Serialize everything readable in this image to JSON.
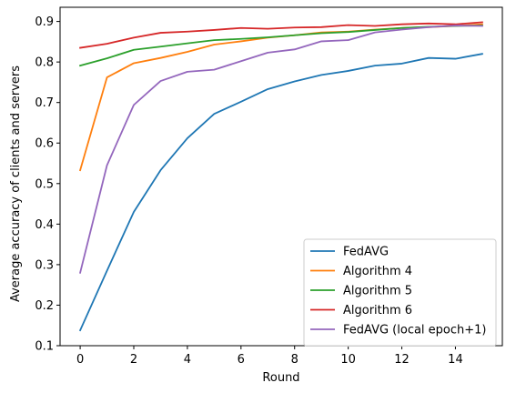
{
  "chart_data": {
    "type": "line",
    "xlabel": "Round",
    "ylabel": "Average accuracy of clients and servers",
    "xlim": [
      -0.75,
      15.75
    ],
    "ylim": [
      0.1,
      0.935
    ],
    "xticks": [
      0,
      2,
      4,
      6,
      8,
      10,
      12,
      14
    ],
    "yticks": [
      0.1,
      0.2,
      0.3,
      0.4,
      0.5,
      0.6,
      0.7,
      0.8,
      0.9
    ],
    "grid": false,
    "legend_position": "lower-right",
    "x": [
      0,
      1,
      2,
      3,
      4,
      5,
      6,
      7,
      8,
      9,
      10,
      11,
      12,
      13,
      14,
      15
    ],
    "series": [
      {
        "name": "FedAVG",
        "color": "#1f77b4",
        "values": [
          0.138,
          0.285,
          0.43,
          0.533,
          0.612,
          0.672,
          0.702,
          0.733,
          0.752,
          0.768,
          0.778,
          0.791,
          0.796,
          0.81,
          0.808,
          0.82
        ]
      },
      {
        "name": "Algorithm 4",
        "color": "#ff7f0e",
        "values": [
          0.533,
          0.762,
          0.797,
          0.81,
          0.825,
          0.843,
          0.851,
          0.86,
          0.866,
          0.873,
          0.875,
          0.88,
          0.884,
          0.886,
          0.889,
          0.893
        ]
      },
      {
        "name": "Algorithm 5",
        "color": "#2ca02c",
        "values": [
          0.791,
          0.809,
          0.83,
          0.838,
          0.846,
          0.854,
          0.857,
          0.861,
          0.866,
          0.871,
          0.874,
          0.879,
          0.884,
          0.887,
          0.889,
          0.89
        ]
      },
      {
        "name": "Algorithm 6",
        "color": "#d62728",
        "values": [
          0.835,
          0.845,
          0.86,
          0.872,
          0.875,
          0.879,
          0.884,
          0.882,
          0.885,
          0.886,
          0.891,
          0.889,
          0.893,
          0.895,
          0.893,
          0.898
        ]
      },
      {
        "name": "FedAVG (local epoch+1)",
        "color": "#9467bd",
        "values": [
          0.28,
          0.545,
          0.694,
          0.753,
          0.776,
          0.781,
          0.802,
          0.823,
          0.831,
          0.851,
          0.854,
          0.873,
          0.88,
          0.886,
          0.89,
          0.889
        ]
      }
    ]
  }
}
